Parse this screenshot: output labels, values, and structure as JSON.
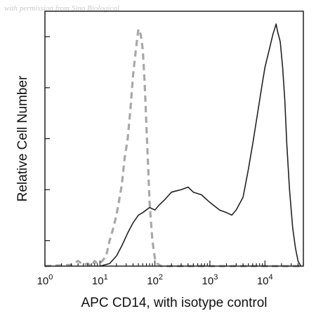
{
  "watermark": "with permission from Sino Biological",
  "chart_data": {
    "type": "line",
    "title": "",
    "xlabel": "APC CD14, with isotype control",
    "ylabel": "Relative Cell Number",
    "xscale": "log",
    "xlim": [
      1,
      50000
    ],
    "ylim": [
      0,
      100
    ],
    "grid": false,
    "x_ticks": [
      {
        "value": 1,
        "base": "10",
        "exp": "0"
      },
      {
        "value": 10,
        "base": "10",
        "exp": "1"
      },
      {
        "value": 100,
        "base": "10",
        "exp": "2"
      },
      {
        "value": 1000,
        "base": "10",
        "exp": "3"
      },
      {
        "value": 10000,
        "base": "10",
        "exp": "4"
      }
    ],
    "series": [
      {
        "style": "dashed",
        "color": "#a8a8a8",
        "points": [
          [
            1,
            0
          ],
          [
            3,
            0.5
          ],
          [
            4,
            2
          ],
          [
            5,
            0.5
          ],
          [
            6,
            1
          ],
          [
            7,
            0
          ],
          [
            8,
            2
          ],
          [
            9,
            1
          ],
          [
            10,
            1
          ],
          [
            11,
            2
          ],
          [
            13,
            4
          ],
          [
            15,
            10
          ],
          [
            17,
            14
          ],
          [
            20,
            20
          ],
          [
            22,
            25
          ],
          [
            25,
            32
          ],
          [
            28,
            42
          ],
          [
            32,
            50
          ],
          [
            36,
            62
          ],
          [
            40,
            75
          ],
          [
            45,
            85
          ],
          [
            50,
            93
          ],
          [
            55,
            91
          ],
          [
            60,
            85
          ],
          [
            65,
            72
          ],
          [
            70,
            55
          ],
          [
            75,
            40
          ],
          [
            80,
            25
          ],
          [
            90,
            10
          ],
          [
            100,
            3
          ],
          [
            110,
            1
          ],
          [
            130,
            0
          ],
          [
            50000,
            0
          ]
        ]
      },
      {
        "style": "solid",
        "color": "#222222",
        "points": [
          [
            10,
            0
          ],
          [
            15,
            1
          ],
          [
            20,
            4
          ],
          [
            25,
            8
          ],
          [
            32,
            13
          ],
          [
            40,
            17
          ],
          [
            50,
            20
          ],
          [
            60,
            21
          ],
          [
            80,
            23
          ],
          [
            100,
            22
          ],
          [
            120,
            24
          ],
          [
            150,
            26
          ],
          [
            200,
            29
          ],
          [
            300,
            30
          ],
          [
            400,
            31
          ],
          [
            500,
            29
          ],
          [
            700,
            28
          ],
          [
            1000,
            25
          ],
          [
            1500,
            22
          ],
          [
            2000,
            21
          ],
          [
            2500,
            20
          ],
          [
            3000,
            22
          ],
          [
            4000,
            27
          ],
          [
            5000,
            38
          ],
          [
            6000,
            48
          ],
          [
            7000,
            57
          ],
          [
            8000,
            65
          ],
          [
            9000,
            72
          ],
          [
            10000,
            78
          ],
          [
            12000,
            85
          ],
          [
            14000,
            91
          ],
          [
            16000,
            95
          ],
          [
            17000,
            92
          ],
          [
            19000,
            88
          ],
          [
            21000,
            78
          ],
          [
            23000,
            65
          ],
          [
            25000,
            48
          ],
          [
            28000,
            30
          ],
          [
            32000,
            15
          ],
          [
            36000,
            7
          ],
          [
            40000,
            2
          ],
          [
            45000,
            0
          ]
        ]
      }
    ]
  }
}
